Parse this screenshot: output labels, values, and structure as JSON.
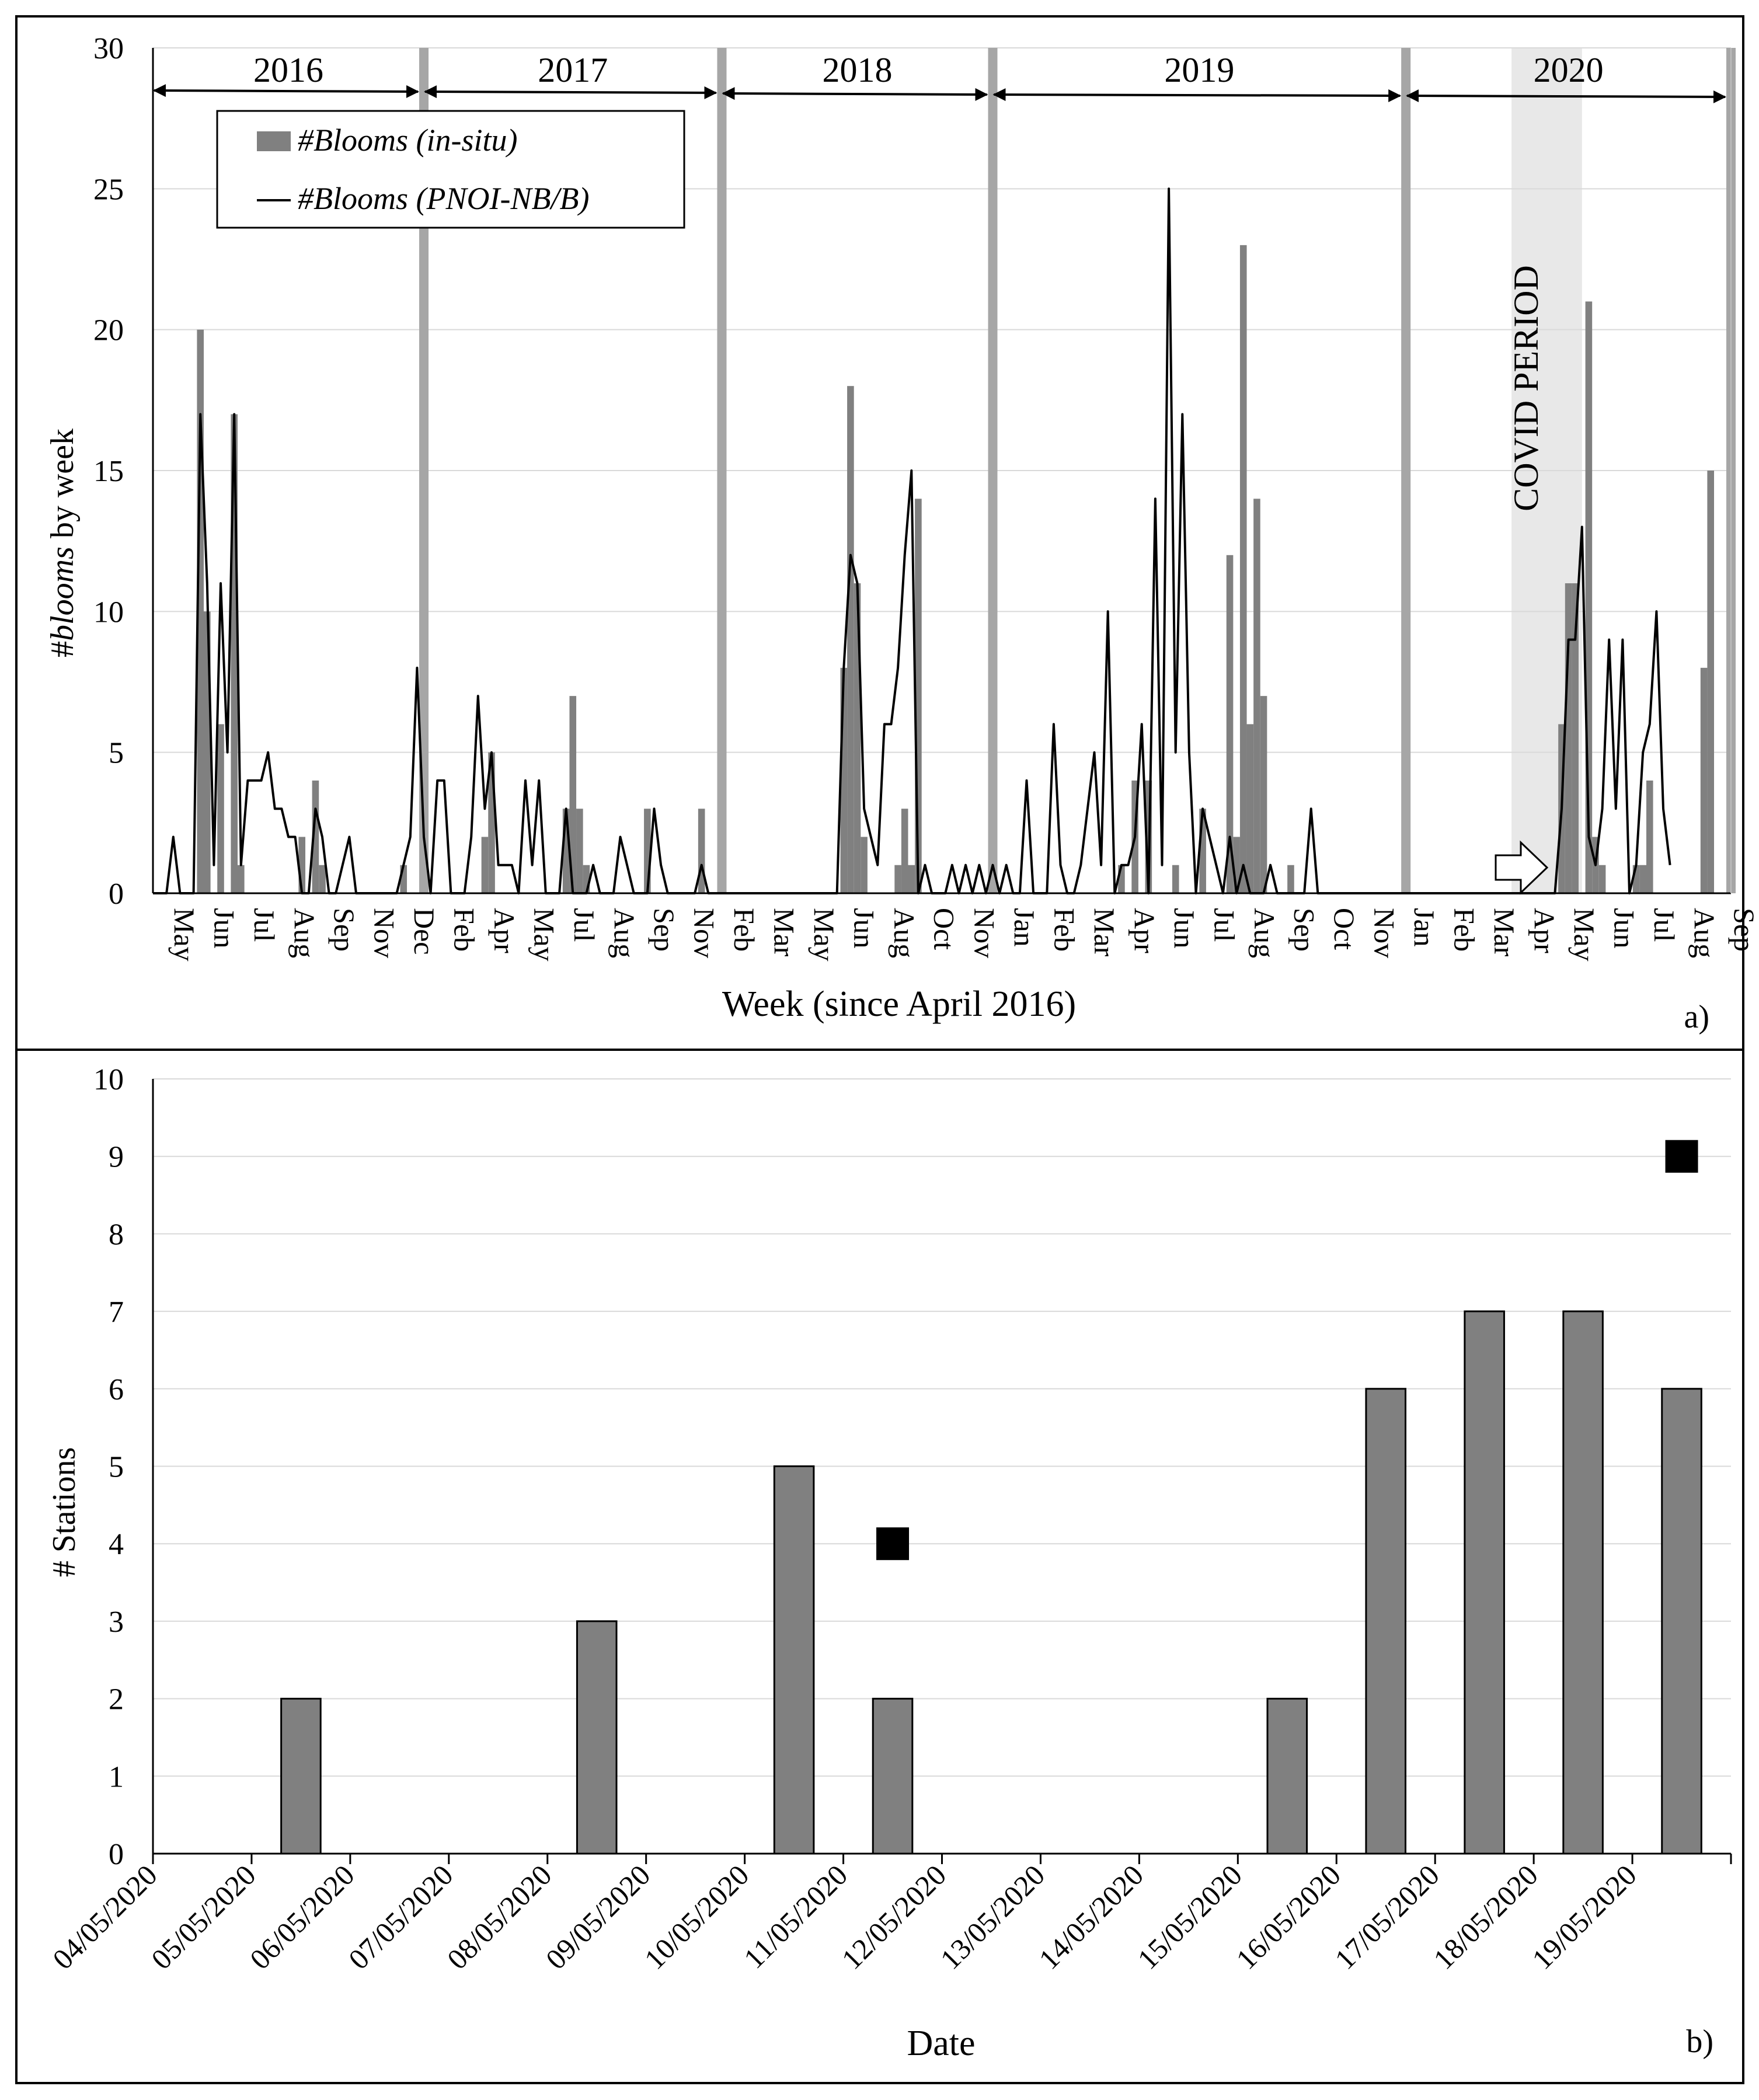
{
  "colors": {
    "bar_fill": "#808080",
    "line": "#000000",
    "year_divider": "#a6a6a6",
    "covid_shade": "#e8e8e8",
    "gridline": "#d9d9d9"
  },
  "panel_a": {
    "panel_label": "a)",
    "year_labels": [
      "2016",
      "2017",
      "2018",
      "2019",
      "2020"
    ],
    "covid_label": "COVID PERIOD",
    "ylabel_prefix": "#",
    "ylabel_italic": "blooms",
    "ylabel_suffix": " by week",
    "xlabel": "Week (since April 2016)",
    "legend_bar_label": "#Blooms (in-situ)",
    "legend_line_label": "#Blooms (PNOI-NB/B)"
  },
  "panel_b": {
    "panel_label": "b)",
    "xlabel": "Date",
    "ylabel": "# Stations"
  },
  "chart_data": [
    {
      "type": "bar",
      "title": "",
      "xlabel": "Week (since April 2016)",
      "ylabel": "#blooms by week",
      "ylim": [
        0,
        30
      ],
      "yticks": [
        0,
        5,
        10,
        15,
        20,
        25,
        30
      ],
      "x_tick_labels": [
        "May",
        "Jun",
        "Jul",
        "Aug",
        "Sep",
        "Nov",
        "Dec",
        "Feb",
        "Apr",
        "May",
        "Jul",
        "Aug",
        "Sep",
        "Nov",
        "Feb",
        "Mar",
        "May",
        "Jun",
        "Aug",
        "Oct",
        "Nov",
        "Jan",
        "Feb",
        "Mar",
        "Apr",
        "Jun",
        "Jul",
        "Aug",
        "Sep",
        "Oct",
        "Nov",
        "Jan",
        "Feb",
        "Mar",
        "Apr",
        "May",
        "Jun",
        "Jul",
        "Aug",
        "Sep"
      ],
      "grid": "horizontal",
      "legend_position": "top-left",
      "covid_period": "Mar–May 2020",
      "x_range_weeks": [
        0,
        233
      ],
      "year_markers": [
        {
          "label": "2016",
          "start_week": 0,
          "end_week": 40
        },
        {
          "label": "2017",
          "start_week": 40,
          "end_week": 84
        },
        {
          "label": "2018",
          "start_week": 84,
          "end_week": 124
        },
        {
          "label": "2019",
          "start_week": 124,
          "end_week": 185
        },
        {
          "label": "2020",
          "start_week": 185,
          "end_week": 233
        }
      ],
      "series": [
        {
          "name": "#Blooms (in-situ)",
          "type": "bar",
          "points": [
            [
              7,
              20
            ],
            [
              8,
              10
            ],
            [
              10,
              6
            ],
            [
              12,
              17
            ],
            [
              13,
              1
            ],
            [
              22,
              2
            ],
            [
              24,
              4
            ],
            [
              25,
              1
            ],
            [
              37,
              1
            ],
            [
              49,
              2
            ],
            [
              50,
              5
            ],
            [
              61,
              3
            ],
            [
              62,
              7
            ],
            [
              63,
              3
            ],
            [
              64,
              1
            ],
            [
              73,
              3
            ],
            [
              81,
              3
            ],
            [
              102,
              8
            ],
            [
              103,
              18
            ],
            [
              104,
              11
            ],
            [
              105,
              2
            ],
            [
              110,
              1
            ],
            [
              111,
              3
            ],
            [
              112,
              1
            ],
            [
              113,
              14
            ],
            [
              143,
              1
            ],
            [
              145,
              4
            ],
            [
              147,
              4
            ],
            [
              151,
              1
            ],
            [
              155,
              3
            ],
            [
              159,
              12
            ],
            [
              160,
              2
            ],
            [
              161,
              23
            ],
            [
              162,
              6
            ],
            [
              163,
              14
            ],
            [
              164,
              7
            ],
            [
              168,
              1
            ],
            [
              208,
              6
            ],
            [
              209,
              11
            ],
            [
              210,
              11
            ],
            [
              212,
              21
            ],
            [
              213,
              2
            ],
            [
              214,
              1
            ],
            [
              219,
              1
            ],
            [
              220,
              1
            ],
            [
              221,
              4
            ],
            [
              229,
              8
            ],
            [
              230,
              15
            ]
          ]
        },
        {
          "name": "#Blooms (PNOI-NB/B)",
          "type": "line",
          "points": [
            [
              0,
              0
            ],
            [
              1,
              0
            ],
            [
              2,
              0
            ],
            [
              3,
              2
            ],
            [
              4,
              0
            ],
            [
              5,
              0
            ],
            [
              6,
              0
            ],
            [
              7,
              17
            ],
            [
              8,
              11
            ],
            [
              9,
              1
            ],
            [
              10,
              11
            ],
            [
              11,
              5
            ],
            [
              12,
              17
            ],
            [
              13,
              1
            ],
            [
              14,
              4
            ],
            [
              15,
              4
            ],
            [
              16,
              4
            ],
            [
              17,
              5
            ],
            [
              18,
              3
            ],
            [
              19,
              3
            ],
            [
              20,
              2
            ],
            [
              21,
              2
            ],
            [
              22,
              0
            ],
            [
              23,
              0
            ],
            [
              24,
              3
            ],
            [
              25,
              2
            ],
            [
              26,
              0
            ],
            [
              27,
              0
            ],
            [
              28,
              1
            ],
            [
              29,
              2
            ],
            [
              30,
              0
            ],
            [
              31,
              0
            ],
            [
              35,
              0
            ],
            [
              36,
              0
            ],
            [
              37,
              1
            ],
            [
              38,
              2
            ],
            [
              39,
              8
            ],
            [
              40,
              2
            ],
            [
              41,
              0
            ],
            [
              42,
              4
            ],
            [
              43,
              4
            ],
            [
              44,
              0
            ],
            [
              45,
              0
            ],
            [
              46,
              0
            ],
            [
              47,
              2
            ],
            [
              48,
              7
            ],
            [
              49,
              3
            ],
            [
              50,
              5
            ],
            [
              51,
              1
            ],
            [
              52,
              1
            ],
            [
              53,
              1
            ],
            [
              54,
              0
            ],
            [
              55,
              4
            ],
            [
              56,
              1
            ],
            [
              57,
              4
            ],
            [
              58,
              0
            ],
            [
              59,
              0
            ],
            [
              60,
              0
            ],
            [
              61,
              3
            ],
            [
              62,
              0
            ],
            [
              63,
              0
            ],
            [
              64,
              0
            ],
            [
              65,
              1
            ],
            [
              66,
              0
            ],
            [
              67,
              0
            ],
            [
              68,
              0
            ],
            [
              69,
              2
            ],
            [
              70,
              1
            ],
            [
              71,
              0
            ],
            [
              72,
              0
            ],
            [
              73,
              0
            ],
            [
              74,
              3
            ],
            [
              75,
              1
            ],
            [
              76,
              0
            ],
            [
              77,
              0
            ],
            [
              78,
              0
            ],
            [
              79,
              0
            ],
            [
              80,
              0
            ],
            [
              81,
              1
            ],
            [
              82,
              0
            ],
            [
              83,
              0
            ],
            [
              84,
              0
            ],
            [
              85,
              0
            ],
            [
              86,
              0
            ],
            [
              87,
              0
            ],
            [
              88,
              0
            ],
            [
              89,
              0
            ],
            [
              90,
              0
            ],
            [
              91,
              0
            ],
            [
              92,
              0
            ],
            [
              93,
              0
            ],
            [
              94,
              0
            ],
            [
              95,
              0
            ],
            [
              96,
              0
            ],
            [
              97,
              0
            ],
            [
              98,
              0
            ],
            [
              99,
              0
            ],
            [
              100,
              0
            ],
            [
              101,
              0
            ],
            [
              102,
              8
            ],
            [
              103,
              12
            ],
            [
              104,
              11
            ],
            [
              105,
              3
            ],
            [
              106,
              2
            ],
            [
              107,
              1
            ],
            [
              108,
              6
            ],
            [
              109,
              6
            ],
            [
              110,
              8
            ],
            [
              111,
              12
            ],
            [
              112,
              15
            ],
            [
              113,
              0
            ],
            [
              114,
              1
            ],
            [
              115,
              0
            ],
            [
              116,
              0
            ],
            [
              117,
              0
            ],
            [
              118,
              1
            ],
            [
              119,
              0
            ],
            [
              120,
              1
            ],
            [
              121,
              0
            ],
            [
              122,
              1
            ],
            [
              123,
              0
            ],
            [
              124,
              1
            ],
            [
              125,
              0
            ],
            [
              126,
              1
            ],
            [
              127,
              0
            ],
            [
              128,
              0
            ],
            [
              129,
              4
            ],
            [
              130,
              0
            ],
            [
              131,
              0
            ],
            [
              132,
              0
            ],
            [
              133,
              6
            ],
            [
              134,
              1
            ],
            [
              135,
              0
            ],
            [
              136,
              0
            ],
            [
              137,
              1
            ],
            [
              138,
              3
            ],
            [
              139,
              5
            ],
            [
              140,
              1
            ],
            [
              141,
              10
            ],
            [
              142,
              0
            ],
            [
              143,
              1
            ],
            [
              144,
              1
            ],
            [
              145,
              2
            ],
            [
              146,
              6
            ],
            [
              147,
              0
            ],
            [
              148,
              14
            ],
            [
              149,
              1
            ],
            [
              150,
              25
            ],
            [
              151,
              5
            ],
            [
              152,
              17
            ],
            [
              153,
              5
            ],
            [
              154,
              0
            ],
            [
              155,
              3
            ],
            [
              156,
              2
            ],
            [
              157,
              1
            ],
            [
              158,
              0
            ],
            [
              159,
              2
            ],
            [
              160,
              0
            ],
            [
              161,
              1
            ],
            [
              162,
              0
            ],
            [
              163,
              0
            ],
            [
              164,
              0
            ],
            [
              165,
              1
            ],
            [
              166,
              0
            ],
            [
              167,
              0
            ],
            [
              168,
              0
            ],
            [
              169,
              0
            ],
            [
              170,
              0
            ],
            [
              171,
              3
            ],
            [
              172,
              0
            ],
            [
              173,
              0
            ],
            [
              174,
              0
            ],
            [
              200,
              0
            ],
            [
              201,
              0
            ],
            [
              202,
              0
            ],
            [
              203,
              0
            ],
            [
              204,
              0
            ],
            [
              205,
              0
            ],
            [
              206,
              0
            ],
            [
              207,
              0
            ],
            [
              208,
              3
            ],
            [
              209,
              9
            ],
            [
              210,
              9
            ],
            [
              211,
              13
            ],
            [
              212,
              2
            ],
            [
              213,
              1
            ],
            [
              214,
              3
            ],
            [
              215,
              9
            ],
            [
              216,
              3
            ],
            [
              217,
              9
            ],
            [
              218,
              0
            ],
            [
              219,
              1
            ],
            [
              220,
              5
            ],
            [
              221,
              6
            ],
            [
              222,
              10
            ],
            [
              223,
              3
            ],
            [
              224,
              1
            ]
          ]
        }
      ]
    },
    {
      "type": "bar",
      "title": "",
      "xlabel": "Date",
      "ylabel": "# Stations",
      "ylim": [
        0,
        10
      ],
      "yticks": [
        0,
        1,
        2,
        3,
        4,
        5,
        6,
        7,
        8,
        9,
        10
      ],
      "grid": "horizontal",
      "categories": [
        "04/05/2020",
        "05/05/2020",
        "06/05/2020",
        "07/05/2020",
        "08/05/2020",
        "09/05/2020",
        "10/05/2020",
        "11/05/2020",
        "12/05/2020",
        "13/05/2020",
        "14/05/2020",
        "15/05/2020",
        "16/05/2020",
        "17/05/2020",
        "18/05/2020",
        "19/05/2020"
      ],
      "series": [
        {
          "type": "bar",
          "values": [
            0,
            2,
            0,
            0,
            3,
            0,
            5,
            2,
            0,
            0,
            0,
            2,
            6,
            7,
            7,
            6
          ]
        },
        {
          "type": "marker-square",
          "values": [
            null,
            null,
            null,
            null,
            null,
            null,
            null,
            4,
            null,
            null,
            null,
            null,
            null,
            null,
            null,
            9
          ]
        }
      ]
    }
  ]
}
